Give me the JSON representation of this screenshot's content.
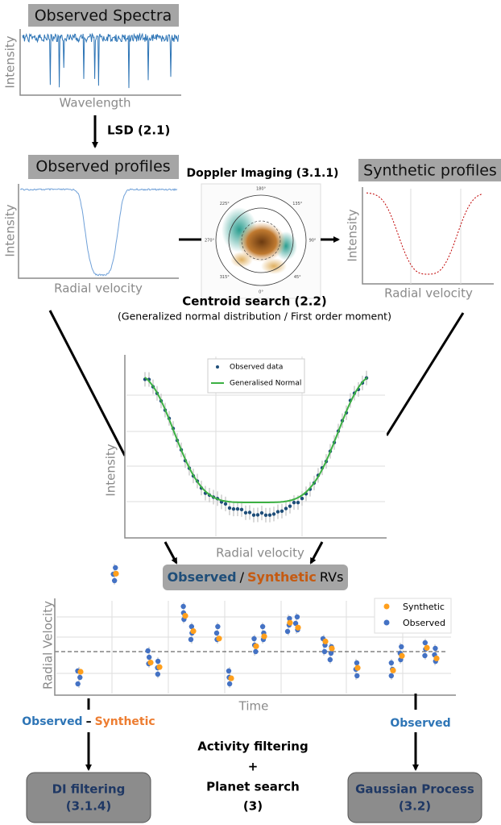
{
  "spectra": {
    "title": "Observed Spectra",
    "y_label": "Intensity",
    "x_label": "Wavelength"
  },
  "lsd": "LSD (2.1)",
  "observed_profiles": {
    "title": "Observed profiles",
    "y_label": "Intensity",
    "x_label": "Radial velocity"
  },
  "doppler": {
    "title": "Doppler Imaging (3.1.1)",
    "angles": [
      "180°",
      "135°",
      "90°",
      "45°",
      "0°",
      "315°",
      "270°",
      "225°"
    ]
  },
  "synthetic_profiles": {
    "title": "Synthetic profiles",
    "y_label": "Intensity",
    "x_label": "Radial velocity"
  },
  "centroid": {
    "title": "Centroid search (2.2)",
    "subtitle": "(Generalized normal distribution / First order moment)",
    "legend": [
      "Observed data",
      "Generalised Normal"
    ],
    "y_label": "Intensity",
    "x_label": "Radial velocity"
  },
  "rvs": {
    "label_parts": [
      "Observed",
      "/",
      "Synthetic",
      "RVs"
    ]
  },
  "rv_chart": {
    "y_label": "Radial Velocity",
    "x_label": "Time",
    "legend": [
      "Synthetic",
      "Observed"
    ]
  },
  "left_branch": {
    "parts": [
      "Observed",
      "–",
      "Synthetic"
    ],
    "box": [
      "DI filtering",
      "(3.1.4)"
    ]
  },
  "right_branch": {
    "label": "Observed",
    "box": [
      "Gaussian Process",
      "(3.2)"
    ]
  },
  "center": [
    "Activity filtering",
    "+",
    "Planet search",
    "(3)"
  ]
}
